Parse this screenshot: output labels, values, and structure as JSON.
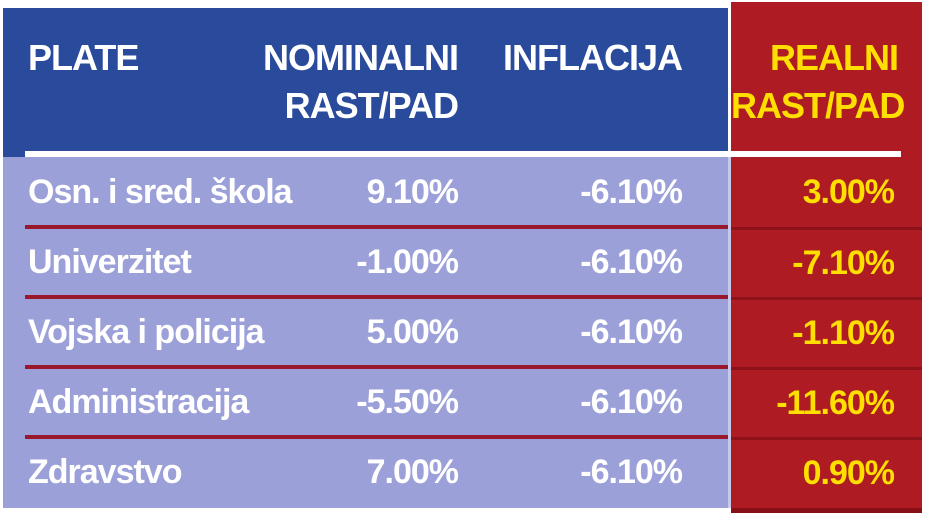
{
  "colors": {
    "header_blue": "#2a4a9c",
    "column_red": "#ae1b23",
    "row_purple": "#9ca0d8",
    "value_yellow": "#ffdf00",
    "separator_maroon": "#99182b"
  },
  "header": {
    "col_plate": "PLATE",
    "col_nominal_line1": "NOMINALNI",
    "col_nominal_line2": "RAST/PAD",
    "col_inflacija": "INFLACIJA",
    "col_realni_line1": "REALNI",
    "col_realni_line2": "RAST/PAD"
  },
  "rows": [
    {
      "label": "Osn. i sred. škola",
      "nominal": "9.10%",
      "inflacija": "-6.10%",
      "realni": "3.00%"
    },
    {
      "label": "Univerzitet",
      "nominal": "-1.00%",
      "inflacija": "-6.10%",
      "realni": "-7.10%"
    },
    {
      "label": "Vojska i policija",
      "nominal": "5.00%",
      "inflacija": "-6.10%",
      "realni": "-1.10%"
    },
    {
      "label": "Administracija",
      "nominal": "-5.50%",
      "inflacija": "-6.10%",
      "realni": "-11.60%"
    },
    {
      "label": "Zdravstvo",
      "nominal": "7.00%",
      "inflacija": "-6.10%",
      "realni": "0.90%"
    }
  ],
  "chart_data": {
    "type": "table",
    "title": "",
    "columns": [
      "PLATE",
      "NOMINALNI RAST/PAD",
      "INFLACIJA",
      "REALNI RAST/PAD"
    ],
    "rows": [
      [
        "Osn. i sred. škola",
        "9.10%",
        "-6.10%",
        "3.00%"
      ],
      [
        "Univerzitet",
        "-1.00%",
        "-6.10%",
        "-7.10%"
      ],
      [
        "Vojska i policija",
        "5.00%",
        "-6.10%",
        "-1.10%"
      ],
      [
        "Administracija",
        "-5.50%",
        "-6.10%",
        "-11.60%"
      ],
      [
        "Zdravstvo",
        "7.00%",
        "-6.10%",
        "0.90%"
      ]
    ],
    "notes": {
      "nominal_values": [
        9.1,
        -1.0,
        5.0,
        -5.5,
        7.0
      ],
      "inflation_values": [
        -6.1,
        -6.1,
        -6.1,
        -6.1,
        -6.1
      ],
      "real_values": [
        3.0,
        -7.1,
        -1.1,
        -11.6,
        0.9
      ],
      "unit": "percent"
    }
  }
}
